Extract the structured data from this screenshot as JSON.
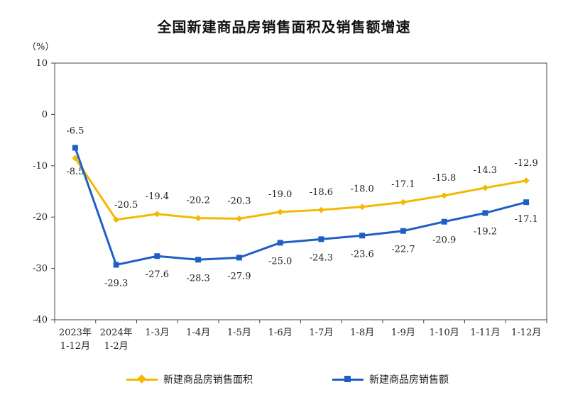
{
  "chart_data": {
    "type": "line",
    "title": "全国新建商品房销售面积及销售额增速",
    "unit": "（%）",
    "x_categories": [
      [
        "2023年",
        "1-12月"
      ],
      [
        "2024年",
        "1-2月"
      ],
      [
        "1-3月"
      ],
      [
        "1-4月"
      ],
      [
        "1-5月"
      ],
      [
        "1-6月"
      ],
      [
        "1-7月"
      ],
      [
        "1-8月"
      ],
      [
        "1-9月"
      ],
      [
        "1-10月"
      ],
      [
        "1-11月"
      ],
      [
        "1-12月"
      ]
    ],
    "ylim": [
      -40,
      10
    ],
    "yticks": [
      10,
      0,
      -10,
      -20,
      -30,
      -40
    ],
    "grid": false,
    "legend_position": "bottom",
    "series": [
      {
        "name": "新建商品房销售面积",
        "color": "#F5B800",
        "marker": "diamond",
        "values": [
          -8.5,
          -20.5,
          -19.4,
          -20.2,
          -20.3,
          -19.0,
          -18.6,
          -18.0,
          -17.1,
          -15.8,
          -14.3,
          -12.9
        ],
        "labels": [
          "-8.5",
          "-20.5",
          "-19.4",
          "-20.2",
          "-20.3",
          "-19.0",
          "-18.6",
          "-18.0",
          "-17.1",
          "-15.8",
          "-14.3",
          "-12.9"
        ]
      },
      {
        "name": "新建商品房销售额",
        "color": "#1F5FC4",
        "marker": "square",
        "values": [
          -6.5,
          -29.3,
          -27.6,
          -28.3,
          -27.9,
          -25.0,
          -24.3,
          -23.6,
          -22.7,
          -20.9,
          -19.2,
          -17.1
        ],
        "labels": [
          "-6.5",
          "-29.3",
          "-27.6",
          "-28.3",
          "-27.9",
          "-25.0",
          "-24.3",
          "-23.6",
          "-22.7",
          "-20.9",
          "-19.2",
          "-17.1"
        ]
      }
    ]
  }
}
